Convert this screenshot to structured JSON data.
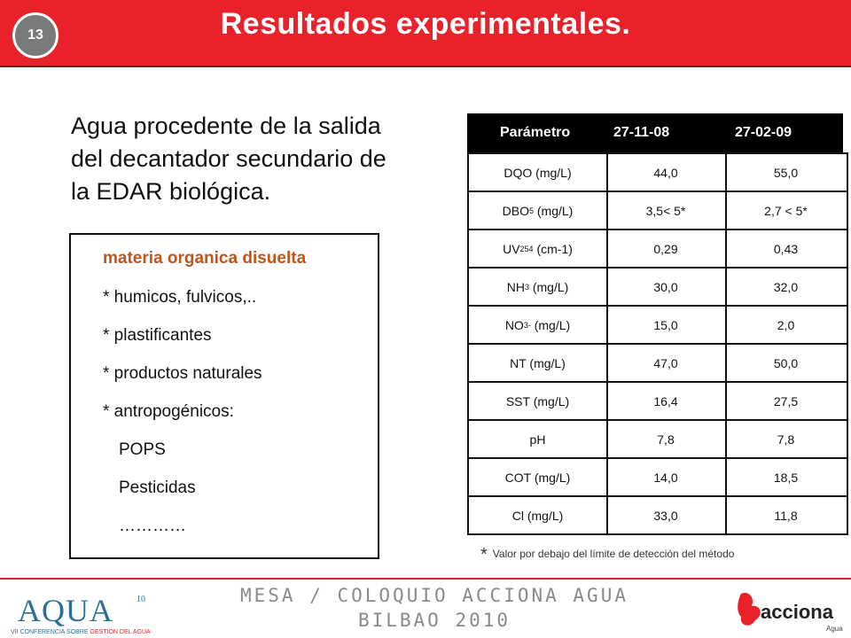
{
  "header": {
    "slide_number": "13",
    "title": "Resultados experimentales."
  },
  "intro_lines": [
    "Agua procedente de la salida",
    "del decantador secundario de",
    "la EDAR biológica."
  ],
  "box": {
    "heading": "materia organica disuelta",
    "items": [
      "* humicos, fulvicos,..",
      "* plastificantes",
      "* productos naturales",
      "* antropogénicos:",
      "POPS",
      "Pesticidas",
      "…………"
    ]
  },
  "table": {
    "headers": [
      "Parámetro",
      "27-11-08",
      "27-02-09"
    ],
    "rows": [
      {
        "param": "DQO (mg/L)",
        "v1": "44,0",
        "v2": "55,0"
      },
      {
        "param_main": "DBO",
        "param_sub": "5",
        "param_rest": " (mg/L)",
        "v1": "3,5< 5*",
        "v2": "2,7 < 5*"
      },
      {
        "param_main": "UV",
        "param_sub": "254",
        "param_rest": " (cm-1)",
        "v1": "0,29",
        "v2": "0,43"
      },
      {
        "param_main": "NH",
        "param_sub": "3",
        "param_rest": " (mg/L)",
        "v1": "30,0",
        "v2": "32,0"
      },
      {
        "param_main": "NO",
        "param_sub": "3",
        "param_sup": "-",
        "param_rest": " (mg/L)",
        "v1": "15,0",
        "v2": "2,0"
      },
      {
        "param": "NT (mg/L)",
        "v1": "47,0",
        "v2": "50,0"
      },
      {
        "param": "SST (mg/L)",
        "v1": "16,4",
        "v2": "27,5"
      },
      {
        "param": "pH",
        "v1": "7,8",
        "v2": "7,8"
      },
      {
        "param": "COT (mg/L)",
        "v1": "14,0",
        "v2": "18,5"
      },
      {
        "param": "Cl (mg/L)",
        "v1": "33,0",
        "v2": "11,8"
      }
    ]
  },
  "footnote": {
    "star": "*",
    "text": "Valor por debajo del límite de detección del método"
  },
  "footer": {
    "line1": "MESA / COLOQUIO ACCIONA AGUA",
    "line2": "BILBAO 2010",
    "aqua_logo_text": "AQUA",
    "aqua_logo_superscript": "10",
    "aqua_logo_caption_prefix": "VII CONFERENCIA SOBRE ",
    "aqua_logo_caption_highlight": "GESTIÓN DEL AGUA",
    "acciona_logo_text": "acciona",
    "acciona_logo_sub": "Agua"
  },
  "colors": {
    "brand_red": "#e8212a",
    "heading_orange": "#c0541a",
    "footer_gray": "#8a8a8a",
    "aqua_blue": "#2a6f96"
  }
}
